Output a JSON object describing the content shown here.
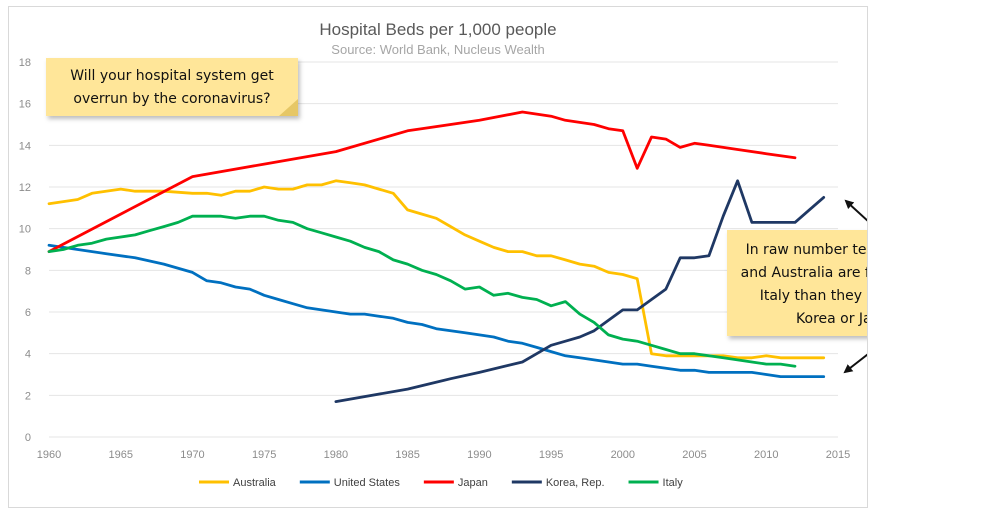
{
  "chart_data": {
    "type": "line",
    "title": "Hospital Beds per 1,000 people",
    "subtitle": "Source: World Bank, Nucleus Wealth",
    "xlabel": "",
    "ylabel": "",
    "xlim": [
      1960,
      2015
    ],
    "ylim": [
      0,
      18
    ],
    "x_ticks": [
      1960,
      1965,
      1970,
      1975,
      1980,
      1985,
      1990,
      1995,
      2000,
      2005,
      2010,
      2015
    ],
    "y_ticks": [
      0,
      2,
      4,
      6,
      8,
      10,
      12,
      14,
      16,
      18
    ],
    "grid": true,
    "legend_position": "bottom",
    "series": [
      {
        "name": "Australia",
        "color": "#FFC000",
        "points": [
          [
            1960,
            11.2
          ],
          [
            1962,
            11.4
          ],
          [
            1963,
            11.7
          ],
          [
            1965,
            11.9
          ],
          [
            1966,
            11.8
          ],
          [
            1968,
            11.8
          ],
          [
            1970,
            11.7
          ],
          [
            1971,
            11.7
          ],
          [
            1972,
            11.6
          ],
          [
            1973,
            11.8
          ],
          [
            1974,
            11.8
          ],
          [
            1975,
            12.0
          ],
          [
            1976,
            11.9
          ],
          [
            1977,
            11.9
          ],
          [
            1978,
            12.1
          ],
          [
            1979,
            12.1
          ],
          [
            1980,
            12.3
          ],
          [
            1981,
            12.2
          ],
          [
            1982,
            12.1
          ],
          [
            1983,
            11.9
          ],
          [
            1984,
            11.7
          ],
          [
            1985,
            10.9
          ],
          [
            1986,
            10.7
          ],
          [
            1987,
            10.5
          ],
          [
            1988,
            10.1
          ],
          [
            1989,
            9.7
          ],
          [
            1990,
            9.4
          ],
          [
            1991,
            9.1
          ],
          [
            1992,
            8.9
          ],
          [
            1993,
            8.9
          ],
          [
            1994,
            8.7
          ],
          [
            1995,
            8.7
          ],
          [
            1996,
            8.5
          ],
          [
            1997,
            8.3
          ],
          [
            1998,
            8.2
          ],
          [
            1999,
            7.9
          ],
          [
            2000,
            7.8
          ],
          [
            2001,
            7.6
          ],
          [
            2002,
            4.0
          ],
          [
            2003,
            3.9
          ],
          [
            2004,
            3.9
          ],
          [
            2005,
            3.9
          ],
          [
            2006,
            3.9
          ],
          [
            2007,
            3.9
          ],
          [
            2008,
            3.8
          ],
          [
            2009,
            3.8
          ],
          [
            2010,
            3.9
          ],
          [
            2011,
            3.8
          ],
          [
            2012,
            3.8
          ],
          [
            2013,
            3.8
          ],
          [
            2014,
            3.8
          ]
        ]
      },
      {
        "name": "United States",
        "color": "#0070C0",
        "points": [
          [
            1960,
            9.2
          ],
          [
            1962,
            9.0
          ],
          [
            1964,
            8.8
          ],
          [
            1966,
            8.6
          ],
          [
            1968,
            8.3
          ],
          [
            1970,
            7.9
          ],
          [
            1971,
            7.5
          ],
          [
            1972,
            7.4
          ],
          [
            1973,
            7.2
          ],
          [
            1974,
            7.1
          ],
          [
            1975,
            6.8
          ],
          [
            1976,
            6.6
          ],
          [
            1977,
            6.4
          ],
          [
            1978,
            6.2
          ],
          [
            1980,
            6.0
          ],
          [
            1981,
            5.9
          ],
          [
            1982,
            5.9
          ],
          [
            1983,
            5.8
          ],
          [
            1984,
            5.7
          ],
          [
            1985,
            5.5
          ],
          [
            1986,
            5.4
          ],
          [
            1987,
            5.2
          ],
          [
            1988,
            5.1
          ],
          [
            1989,
            5.0
          ],
          [
            1990,
            4.9
          ],
          [
            1991,
            4.8
          ],
          [
            1992,
            4.6
          ],
          [
            1993,
            4.5
          ],
          [
            1994,
            4.3
          ],
          [
            1995,
            4.1
          ],
          [
            1996,
            3.9
          ],
          [
            1997,
            3.8
          ],
          [
            1998,
            3.7
          ],
          [
            1999,
            3.6
          ],
          [
            2000,
            3.5
          ],
          [
            2001,
            3.5
          ],
          [
            2002,
            3.4
          ],
          [
            2003,
            3.3
          ],
          [
            2004,
            3.2
          ],
          [
            2005,
            3.2
          ],
          [
            2006,
            3.1
          ],
          [
            2007,
            3.1
          ],
          [
            2008,
            3.1
          ],
          [
            2009,
            3.1
          ],
          [
            2010,
            3.0
          ],
          [
            2011,
            2.9
          ],
          [
            2012,
            2.9
          ],
          [
            2013,
            2.9
          ],
          [
            2014,
            2.9
          ]
        ]
      },
      {
        "name": "Japan",
        "color": "#FF0000",
        "points": [
          [
            1960,
            8.9
          ],
          [
            1965,
            10.7
          ],
          [
            1970,
            12.5
          ],
          [
            1975,
            13.1
          ],
          [
            1980,
            13.7
          ],
          [
            1985,
            14.7
          ],
          [
            1990,
            15.2
          ],
          [
            1993,
            15.6
          ],
          [
            1995,
            15.4
          ],
          [
            1996,
            15.2
          ],
          [
            1998,
            15.0
          ],
          [
            1999,
            14.8
          ],
          [
            2000,
            14.7
          ],
          [
            2001,
            12.9
          ],
          [
            2002,
            14.4
          ],
          [
            2003,
            14.3
          ],
          [
            2004,
            13.9
          ],
          [
            2005,
            14.1
          ],
          [
            2006,
            14.0
          ],
          [
            2008,
            13.8
          ],
          [
            2010,
            13.6
          ],
          [
            2012,
            13.4
          ]
        ]
      },
      {
        "name": "Korea, Rep.",
        "color": "#1F3864",
        "points": [
          [
            1980,
            1.7
          ],
          [
            1985,
            2.3
          ],
          [
            1988,
            2.8
          ],
          [
            1990,
            3.1
          ],
          [
            1993,
            3.6
          ],
          [
            1994,
            4.0
          ],
          [
            1995,
            4.4
          ],
          [
            1996,
            4.6
          ],
          [
            1997,
            4.8
          ],
          [
            1998,
            5.1
          ],
          [
            1999,
            5.6
          ],
          [
            2000,
            6.1
          ],
          [
            2001,
            6.1
          ],
          [
            2002,
            6.6
          ],
          [
            2003,
            7.1
          ],
          [
            2004,
            8.6
          ],
          [
            2005,
            8.6
          ],
          [
            2006,
            8.7
          ],
          [
            2007,
            10.6
          ],
          [
            2008,
            12.3
          ],
          [
            2009,
            10.3
          ],
          [
            2010,
            10.3
          ],
          [
            2011,
            10.3
          ],
          [
            2012,
            10.3
          ],
          [
            2013,
            10.9
          ],
          [
            2014,
            11.5
          ]
        ]
      },
      {
        "name": "Italy",
        "color": "#00B050",
        "points": [
          [
            1960,
            8.9
          ],
          [
            1961,
            9.0
          ],
          [
            1962,
            9.2
          ],
          [
            1963,
            9.3
          ],
          [
            1964,
            9.5
          ],
          [
            1966,
            9.7
          ],
          [
            1967,
            9.9
          ],
          [
            1968,
            10.1
          ],
          [
            1969,
            10.3
          ],
          [
            1970,
            10.6
          ],
          [
            1971,
            10.6
          ],
          [
            1972,
            10.6
          ],
          [
            1973,
            10.5
          ],
          [
            1974,
            10.6
          ],
          [
            1975,
            10.6
          ],
          [
            1976,
            10.4
          ],
          [
            1977,
            10.3
          ],
          [
            1978,
            10.0
          ],
          [
            1979,
            9.8
          ],
          [
            1980,
            9.6
          ],
          [
            1981,
            9.4
          ],
          [
            1982,
            9.1
          ],
          [
            1983,
            8.9
          ],
          [
            1984,
            8.5
          ],
          [
            1985,
            8.3
          ],
          [
            1986,
            8.0
          ],
          [
            1987,
            7.8
          ],
          [
            1988,
            7.5
          ],
          [
            1989,
            7.1
          ],
          [
            1990,
            7.2
          ],
          [
            1991,
            6.8
          ],
          [
            1992,
            6.9
          ],
          [
            1993,
            6.7
          ],
          [
            1994,
            6.6
          ],
          [
            1995,
            6.3
          ],
          [
            1996,
            6.5
          ],
          [
            1997,
            5.9
          ],
          [
            1998,
            5.5
          ],
          [
            1999,
            4.9
          ],
          [
            2000,
            4.7
          ],
          [
            2001,
            4.6
          ],
          [
            2002,
            4.4
          ],
          [
            2003,
            4.2
          ],
          [
            2004,
            4.0
          ],
          [
            2005,
            4.0
          ],
          [
            2006,
            3.9
          ],
          [
            2007,
            3.8
          ],
          [
            2008,
            3.7
          ],
          [
            2009,
            3.6
          ],
          [
            2010,
            3.5
          ],
          [
            2011,
            3.5
          ],
          [
            2012,
            3.4
          ]
        ]
      }
    ],
    "annotations": [
      {
        "id": "note-top",
        "lines": [
          "Will your hospital system get",
          "overrun by the coronavirus?"
        ]
      },
      {
        "id": "note-right",
        "lines": [
          "In raw number terms, the US",
          "and Australia are far more like",
          "Italy than they are South",
          "Korea or Japan"
        ]
      }
    ],
    "note_color": "#FFE699"
  }
}
